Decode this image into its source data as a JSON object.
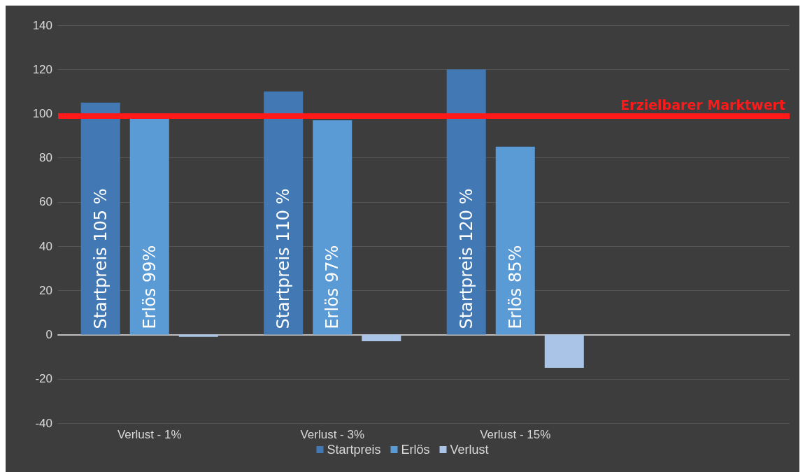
{
  "chart_data": {
    "type": "bar",
    "categories": [
      "Verlust - 1%",
      "Verlust - 3%",
      "Verlust - 15%",
      null
    ],
    "series": [
      {
        "name": "Startpreis",
        "color": "#4279b4",
        "values": [
          105,
          110,
          120,
          null
        ],
        "value_labels": [
          "Startpreis 105 %",
          "Startpreis 110 %",
          "Startpreis 120 %",
          null
        ]
      },
      {
        "name": "Erlös",
        "color": "#5b9bd5",
        "values": [
          99,
          97,
          85,
          null
        ],
        "value_labels": [
          "Erlös 99%",
          "Erlös 97%",
          "Erlös 85%",
          null
        ]
      },
      {
        "name": "Verlust",
        "color": "#a9c4e6",
        "values": [
          -1,
          -3,
          -15,
          null
        ]
      }
    ],
    "ylim": [
      -40,
      140
    ],
    "yticks": [
      -40,
      -20,
      0,
      20,
      40,
      60,
      80,
      100,
      120,
      140
    ],
    "grid": "y",
    "legend": "bottom",
    "ref_lines": [
      {
        "axis": "y",
        "value": 99,
        "label": "Erzielbarer Marktwert",
        "color": "#ff1a1a"
      }
    ]
  }
}
